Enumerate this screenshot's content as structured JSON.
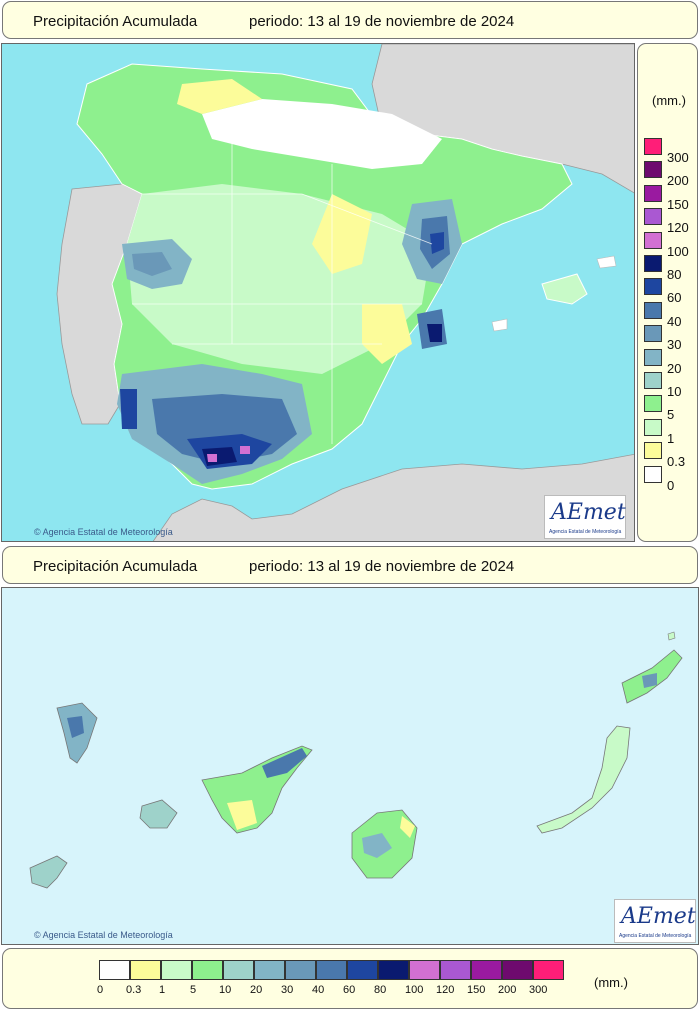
{
  "top_panel": {
    "title": "Precipitación Acumulada",
    "period": "periodo: 13 al 19 de noviembre de 2024",
    "credit": "Agencia Estatal de Meteorología",
    "logo": {
      "text": "AEmet",
      "subtitle": "Agencia Estatal de Meteorología"
    }
  },
  "bottom_panel": {
    "title": "Precipitación Acumulada",
    "period": "periodo: 13 al 19 de noviembre de 2024",
    "credit": "Agencia Estatal de Meteorología",
    "logo": {
      "text": "AEmet",
      "subtitle": "Agencia Estatal de Meteorología"
    }
  },
  "legend": {
    "unit": "(mm.)",
    "classes": [
      {
        "label": "0",
        "color": "#ffffff"
      },
      {
        "label": "0.3",
        "color": "#fcfc9a"
      },
      {
        "label": "1",
        "color": "#c8fac8"
      },
      {
        "label": "5",
        "color": "#8ef08e"
      },
      {
        "label": "10",
        "color": "#9ed2ca"
      },
      {
        "label": "20",
        "color": "#82b4c6"
      },
      {
        "label": "30",
        "color": "#6a98b8"
      },
      {
        "label": "40",
        "color": "#4a78ac"
      },
      {
        "label": "60",
        "color": "#1e46a0"
      },
      {
        "label": "80",
        "color": "#0a1a70"
      },
      {
        "label": "100",
        "color": "#d270d2"
      },
      {
        "label": "120",
        "color": "#aa58d2"
      },
      {
        "label": "150",
        "color": "#9a1aa0"
      },
      {
        "label": "200",
        "color": "#6e0a6e"
      },
      {
        "label": "300",
        "color": "#ff1e78"
      }
    ]
  },
  "map_colors": {
    "sea": "#8ee6f0",
    "land_outside": "#d9d9d9",
    "canary_sea": "#d7f4fb"
  }
}
